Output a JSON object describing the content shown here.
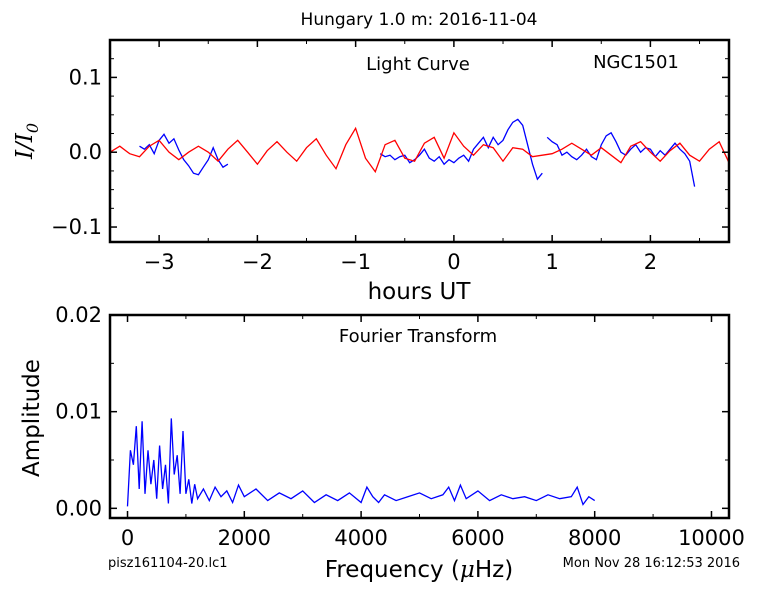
{
  "figure": {
    "suptitle": "Hungary 1.0 m:  2016-11-04",
    "footer_left": "pisz161104-20.lc1",
    "footer_right": "Mon Nov 28 16:12:53 2016"
  },
  "chart_data": [
    {
      "type": "line",
      "title": "Light Curve",
      "annotation": "NGC1501",
      "xlabel": "hours UT",
      "ylabel": "I/I0",
      "ylabel_main": "I/I",
      "ylabel_sub": "0",
      "xlim": [
        -3.5,
        2.8
      ],
      "ylim": [
        -0.12,
        0.15
      ],
      "xticks": [
        -3,
        -2,
        -1,
        0,
        1,
        2
      ],
      "xtick_labels": [
        "−3",
        "−2",
        "−1",
        "0",
        "1",
        "2"
      ],
      "yticks": [
        -0.1,
        0.0,
        0.1
      ],
      "ytick_labels": [
        "−0.1",
        "0.0",
        "0.1"
      ],
      "grid": false,
      "series": [
        {
          "color": "#0000ff",
          "segments": [
            {
              "x": [
                -3.2,
                -3.15,
                -3.1,
                -3.05,
                -3.0,
                -2.95,
                -2.9,
                -2.85,
                -2.8,
                -2.75,
                -2.7,
                -2.65,
                -2.6,
                -2.55,
                -2.5,
                -2.45,
                -2.4,
                -2.35,
                -2.3
              ],
              "y": [
                0.008,
                0.004,
                0.01,
                -0.002,
                0.016,
                0.024,
                0.012,
                0.018,
                0.003,
                -0.01,
                -0.018,
                -0.028,
                -0.03,
                -0.02,
                -0.01,
                0.006,
                -0.01,
                -0.02,
                -0.016
              ]
            },
            {
              "x": [
                -0.75,
                -0.7,
                -0.65,
                -0.6,
                -0.55,
                -0.5,
                -0.45,
                -0.4,
                -0.35,
                -0.3,
                -0.25,
                -0.2,
                -0.15,
                -0.1,
                -0.05,
                0.0,
                0.05,
                0.1,
                0.15,
                0.2,
                0.25,
                0.3,
                0.35,
                0.4,
                0.45,
                0.5,
                0.55,
                0.6,
                0.65,
                0.7,
                0.75,
                0.8,
                0.85,
                0.9
              ],
              "y": [
                -0.002,
                -0.006,
                -0.004,
                -0.01,
                -0.006,
                -0.004,
                -0.014,
                -0.01,
                -0.004,
                0.004,
                -0.008,
                -0.012,
                -0.006,
                -0.016,
                -0.01,
                -0.014,
                -0.008,
                -0.004,
                -0.012,
                0.004,
                0.012,
                0.02,
                0.006,
                0.02,
                0.01,
                0.016,
                0.03,
                0.04,
                0.044,
                0.036,
                0.01,
                -0.016,
                -0.036,
                -0.028
              ]
            },
            {
              "x": [
                0.95,
                1.0,
                1.05,
                1.1,
                1.15,
                1.2,
                1.25,
                1.3,
                1.35,
                1.4,
                1.45,
                1.5,
                1.55,
                1.6,
                1.65,
                1.7,
                1.75,
                1.8,
                1.85,
                1.9,
                1.95,
                2.0,
                2.05,
                2.1,
                2.15,
                2.2,
                2.25,
                2.3,
                2.35,
                2.4,
                2.45
              ],
              "y": [
                0.02,
                0.014,
                0.01,
                -0.004,
                0.0,
                -0.006,
                -0.01,
                -0.004,
                0.004,
                -0.006,
                -0.01,
                0.01,
                0.022,
                0.026,
                0.014,
                0.0,
                -0.004,
                0.004,
                0.01,
                0.0,
                0.006,
                0.004,
                -0.006,
                0.002,
                -0.004,
                0.004,
                0.012,
                0.004,
                -0.002,
                -0.012,
                -0.046
              ]
            }
          ]
        },
        {
          "color": "#ff0000",
          "segments": [
            {
              "x": [
                -3.5,
                -3.4,
                -3.3,
                -3.2,
                -3.1,
                -3.0,
                -2.9,
                -2.8,
                -2.7,
                -2.6,
                -2.5,
                -2.4,
                -2.3,
                -2.2,
                -2.1,
                -2.0,
                -1.9,
                -1.8,
                -1.7,
                -1.6,
                -1.5,
                -1.4,
                -1.3,
                -1.2,
                -1.1,
                -1.0,
                -0.9,
                -0.8,
                -0.7,
                -0.6,
                -0.5,
                -0.4,
                -0.3,
                -0.2,
                -0.1,
                0.0,
                0.1,
                0.2,
                0.3,
                0.4,
                0.5,
                0.6,
                0.7,
                0.8,
                0.9,
                1.0,
                1.1,
                1.2,
                1.3,
                1.4,
                1.5,
                1.6,
                1.7,
                1.8,
                1.9,
                2.0,
                2.1,
                2.2,
                2.3,
                2.4,
                2.5,
                2.6,
                2.7,
                2.8
              ],
              "y": [
                0.0,
                0.008,
                -0.002,
                -0.006,
                0.008,
                0.016,
                0.0,
                -0.01,
                0.0,
                0.008,
                0.0,
                -0.012,
                0.004,
                0.016,
                0.0,
                -0.016,
                0.002,
                0.014,
                0.0,
                -0.012,
                0.006,
                0.018,
                -0.004,
                -0.022,
                0.01,
                0.032,
                -0.008,
                -0.026,
                0.01,
                0.016,
                -0.008,
                -0.012,
                0.012,
                0.02,
                -0.008,
                0.026,
                0.008,
                -0.004,
                0.01,
                0.006,
                -0.012,
                0.006,
                0.004,
                -0.006,
                -0.004,
                -0.002,
                0.004,
                0.012,
                0.004,
                -0.004,
                0.006,
                -0.004,
                -0.014,
                0.008,
                0.014,
                0.0,
                -0.012,
                0.002,
                0.012,
                -0.004,
                -0.012,
                0.004,
                0.014,
                -0.014
              ]
            }
          ]
        }
      ]
    },
    {
      "type": "line",
      "title": "Fourier Transform",
      "xlabel": "Frequency (μHz)",
      "xlabel_main": "Frequency (",
      "xlabel_mu": "μ",
      "xlabel_unit": "Hz)",
      "ylabel": "Amplitude",
      "xlim": [
        -300,
        10300
      ],
      "ylim": [
        -0.001,
        0.02
      ],
      "xticks": [
        0,
        2000,
        4000,
        6000,
        8000,
        10000
      ],
      "xtick_labels": [
        "0",
        "2000",
        "4000",
        "6000",
        "8000",
        "10000"
      ],
      "yticks": [
        0.0,
        0.01,
        0.02
      ],
      "ytick_labels": [
        "0.00",
        "0.01",
        "0.02"
      ],
      "grid": false,
      "series": [
        {
          "color": "#0000ff",
          "x": [
            0,
            50,
            100,
            150,
            200,
            250,
            300,
            350,
            400,
            450,
            500,
            550,
            600,
            650,
            700,
            750,
            800,
            850,
            900,
            950,
            1000,
            1050,
            1100,
            1150,
            1200,
            1300,
            1400,
            1500,
            1600,
            1700,
            1800,
            1900,
            2000,
            2200,
            2400,
            2600,
            2800,
            3000,
            3200,
            3400,
            3600,
            3800,
            4000,
            4100,
            4200,
            4300,
            4400,
            4600,
            4800,
            5000,
            5200,
            5400,
            5500,
            5600,
            5700,
            5800,
            6000,
            6200,
            6400,
            6600,
            6800,
            7000,
            7200,
            7400,
            7600,
            7700,
            7800,
            7900,
            8000
          ],
          "y": [
            0.0002,
            0.006,
            0.0045,
            0.0085,
            0.002,
            0.009,
            0.0015,
            0.006,
            0.0025,
            0.005,
            0.001,
            0.0065,
            0.002,
            0.0045,
            0.0005,
            0.0093,
            0.0035,
            0.0055,
            0.0015,
            0.008,
            0.0015,
            0.003,
            0.0005,
            0.0025,
            0.001,
            0.002,
            0.0008,
            0.0022,
            0.0012,
            0.0018,
            0.0006,
            0.0024,
            0.0012,
            0.002,
            0.0008,
            0.0016,
            0.001,
            0.0018,
            0.0006,
            0.0014,
            0.0008,
            0.0016,
            0.0006,
            0.0022,
            0.0012,
            0.0006,
            0.0014,
            0.0008,
            0.0012,
            0.0016,
            0.001,
            0.0014,
            0.0022,
            0.0008,
            0.0024,
            0.001,
            0.0018,
            0.0008,
            0.0014,
            0.001,
            0.0012,
            0.0008,
            0.0014,
            0.001,
            0.0012,
            0.0022,
            0.0004,
            0.0012,
            0.0008
          ]
        }
      ]
    }
  ]
}
